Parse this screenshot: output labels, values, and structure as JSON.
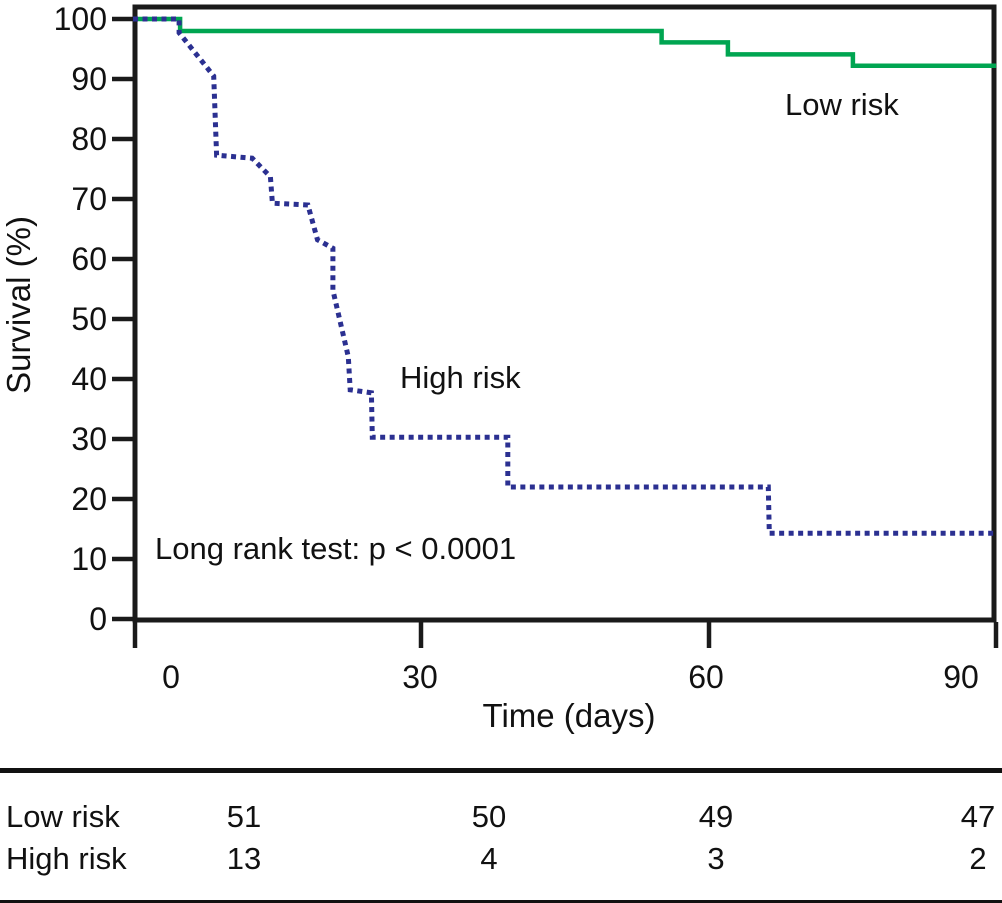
{
  "chart_data": {
    "type": "line",
    "subtype": "kaplan-meier-survival-steps",
    "title": "",
    "xlabel": "Time (days)",
    "ylabel": "Survival (%)",
    "xlim": [
      0,
      90
    ],
    "ylim": [
      0,
      100
    ],
    "xticks": [
      "0",
      "30",
      "60",
      "90"
    ],
    "yticks": [
      "100",
      "90",
      "80",
      "70",
      "60",
      "50",
      "40",
      "30",
      "20",
      "10",
      "0"
    ],
    "grid": false,
    "legend": "inline-labels",
    "annotation": "Long rank test: p < 0.0001",
    "series": [
      {
        "name": "Low risk",
        "color": "#00a551",
        "style": "solid",
        "points": [
          [
            0,
            100
          ],
          [
            4.9,
            100
          ],
          [
            4.9,
            98.0
          ],
          [
            55,
            98.0
          ],
          [
            55,
            96.1
          ],
          [
            61.9,
            96.1
          ],
          [
            61.9,
            94.1
          ],
          [
            74.9,
            94.1
          ],
          [
            74.9,
            92.2
          ],
          [
            89.8,
            92.2
          ]
        ]
      },
      {
        "name": "High risk",
        "color": "#2b3091",
        "style": "dotted",
        "points": [
          [
            0,
            100
          ],
          [
            4.8,
            100
          ],
          [
            4.8,
            97.7
          ],
          [
            8.4,
            90.5
          ],
          [
            8.7,
            77.3
          ],
          [
            12.4,
            76.8
          ],
          [
            14.3,
            73.7
          ],
          [
            14.5,
            69.3
          ],
          [
            18.2,
            69.0
          ],
          [
            19.2,
            63.2
          ],
          [
            20.8,
            61.8
          ],
          [
            20.8,
            54.8
          ],
          [
            22.4,
            43.7
          ],
          [
            22.6,
            38.2
          ],
          [
            24.8,
            37.7
          ],
          [
            24.9,
            30.3
          ],
          [
            39.0,
            30.3
          ],
          [
            39.0,
            22.0
          ],
          [
            66.1,
            22.0
          ],
          [
            66.2,
            14.3
          ],
          [
            89.8,
            14.3
          ]
        ]
      }
    ]
  },
  "risk_table": {
    "rows": [
      {
        "label": "Low risk",
        "values": [
          "51",
          "50",
          "49",
          "47"
        ]
      },
      {
        "label": "High risk",
        "values": [
          "13",
          "4",
          "3",
          "2"
        ]
      }
    ]
  }
}
